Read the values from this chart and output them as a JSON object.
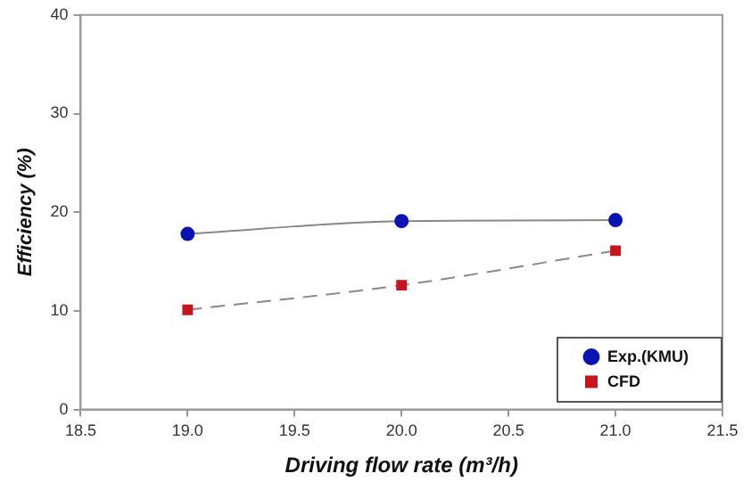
{
  "chart_data": {
    "type": "line",
    "xlabel": "Driving flow rate (m³/h)",
    "ylabel": "Efficiency (%)",
    "x": [
      19.0,
      20.0,
      21.0
    ],
    "series": [
      {
        "name": "Exp.(KMU)",
        "color": "#0a14b4",
        "values": [
          17.8,
          19.1,
          19.2
        ],
        "marker": "circle",
        "line_style": "solid"
      },
      {
        "name": "CFD",
        "color": "#c8141e",
        "values": [
          10.1,
          12.6,
          16.1
        ],
        "marker": "square",
        "line_style": "dashed"
      }
    ],
    "xlim": [
      18.5,
      21.5
    ],
    "xticks": [
      {
        "value": 18.5,
        "label": "18.5"
      },
      {
        "value": 19,
        "label": "19.0"
      },
      {
        "value": 19.5,
        "label": "19.5"
      },
      {
        "value": 20,
        "label": "20.0"
      },
      {
        "value": 20.5,
        "label": "20.5"
      },
      {
        "value": 21,
        "label": "21.0"
      },
      {
        "value": 21.5,
        "label": "21.5"
      }
    ],
    "ylim": [
      0,
      40
    ],
    "yticks": [
      0,
      10,
      20,
      30,
      40
    ],
    "grid": false,
    "legend": "bottom right"
  }
}
